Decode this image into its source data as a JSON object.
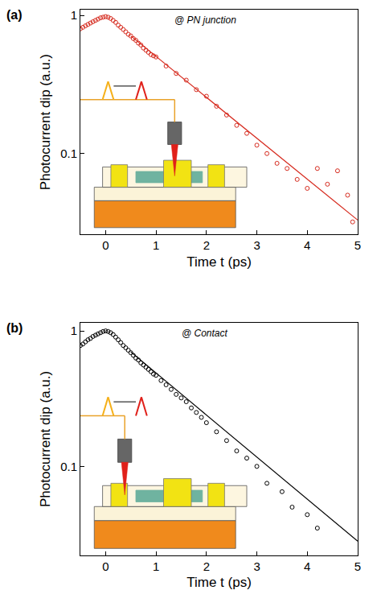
{
  "chart_data": [
    {
      "type": "scatter",
      "panel": "(a)",
      "annotation": "@ PN junction",
      "x_label": "Time t (ps)",
      "y_label": "Photocurrent dip (a.u.)",
      "log": "y",
      "grid": false,
      "xlim": [
        -0.5,
        5
      ],
      "xticks": [
        0,
        1,
        2,
        3,
        4,
        5
      ],
      "ylim": [
        0.026,
        1.1
      ],
      "yticks": [
        0.1,
        1
      ],
      "series": [
        {
          "type": "scatter",
          "color": "#d62a1e",
          "marker": "circle-open",
          "x": [
            -0.5,
            -0.45,
            -0.4,
            -0.35,
            -0.3,
            -0.25,
            -0.2,
            -0.15,
            -0.1,
            -0.05,
            0,
            0.05,
            0.1,
            0.15,
            0.2,
            0.25,
            0.3,
            0.35,
            0.4,
            0.45,
            0.5,
            0.55,
            0.6,
            0.65,
            0.7,
            0.75,
            0.8,
            0.85,
            0.9,
            0.95,
            1.0,
            1.2,
            1.4,
            1.6,
            1.8,
            2.0,
            2.2,
            2.4,
            2.6,
            2.8,
            3.0,
            3.2,
            3.4,
            3.6,
            3.8,
            4.0,
            4.2,
            4.4,
            4.6,
            4.8,
            4.9
          ],
          "values": [
            0.8,
            0.82,
            0.84,
            0.86,
            0.88,
            0.9,
            0.92,
            0.94,
            0.96,
            0.97,
            0.98,
            0.97,
            0.95,
            0.92,
            0.89,
            0.85,
            0.82,
            0.79,
            0.76,
            0.73,
            0.71,
            0.68,
            0.66,
            0.63,
            0.61,
            0.58,
            0.56,
            0.54,
            0.52,
            0.51,
            0.5,
            0.43,
            0.38,
            0.34,
            0.29,
            0.26,
            0.22,
            0.19,
            0.16,
            0.14,
            0.115,
            0.1,
            0.085,
            0.078,
            0.065,
            0.056,
            0.078,
            0.06,
            0.075,
            0.05,
            0.032
          ]
        },
        {
          "type": "line",
          "color": "#d62a1e",
          "line_style": "solid",
          "x": [
            0.5,
            5
          ],
          "values": [
            0.71,
            0.033
          ]
        }
      ]
    },
    {
      "type": "scatter",
      "panel": "(b)",
      "annotation": "@ Contact",
      "x_label": "Time t (ps)",
      "y_label": "Photocurrent dip (a.u.)",
      "log": "y",
      "grid": false,
      "xlim": [
        -0.5,
        5
      ],
      "xticks": [
        0,
        1,
        2,
        3,
        4,
        5
      ],
      "ylim": [
        0.022,
        1.15
      ],
      "yticks": [
        0.1,
        1
      ],
      "series": [
        {
          "type": "scatter",
          "color": "#000000",
          "marker": "circle-open",
          "x": [
            -0.5,
            -0.45,
            -0.4,
            -0.35,
            -0.3,
            -0.25,
            -0.2,
            -0.15,
            -0.1,
            -0.05,
            0,
            0.05,
            0.1,
            0.15,
            0.2,
            0.25,
            0.3,
            0.35,
            0.4,
            0.45,
            0.5,
            0.55,
            0.6,
            0.65,
            0.7,
            0.75,
            0.8,
            0.85,
            0.9,
            0.95,
            1.0,
            1.1,
            1.2,
            1.3,
            1.4,
            1.5,
            1.6,
            1.7,
            1.8,
            1.9,
            2.0,
            2.2,
            2.4,
            2.6,
            2.8,
            3.0,
            3.2,
            3.5,
            3.7,
            4.0,
            4.2
          ],
          "values": [
            0.78,
            0.8,
            0.83,
            0.86,
            0.88,
            0.91,
            0.93,
            0.95,
            0.97,
            0.99,
            1.0,
            0.99,
            0.97,
            0.94,
            0.9,
            0.86,
            0.82,
            0.78,
            0.75,
            0.72,
            0.69,
            0.66,
            0.63,
            0.61,
            0.58,
            0.56,
            0.54,
            0.52,
            0.5,
            0.48,
            0.47,
            0.43,
            0.4,
            0.37,
            0.34,
            0.32,
            0.3,
            0.27,
            0.25,
            0.23,
            0.21,
            0.18,
            0.155,
            0.13,
            0.115,
            0.1,
            0.075,
            0.065,
            0.05,
            0.044,
            0.035
          ]
        },
        {
          "type": "line",
          "color": "#000000",
          "line_style": "solid",
          "x": [
            0.5,
            5
          ],
          "values": [
            0.7,
            0.028
          ]
        }
      ]
    }
  ]
}
